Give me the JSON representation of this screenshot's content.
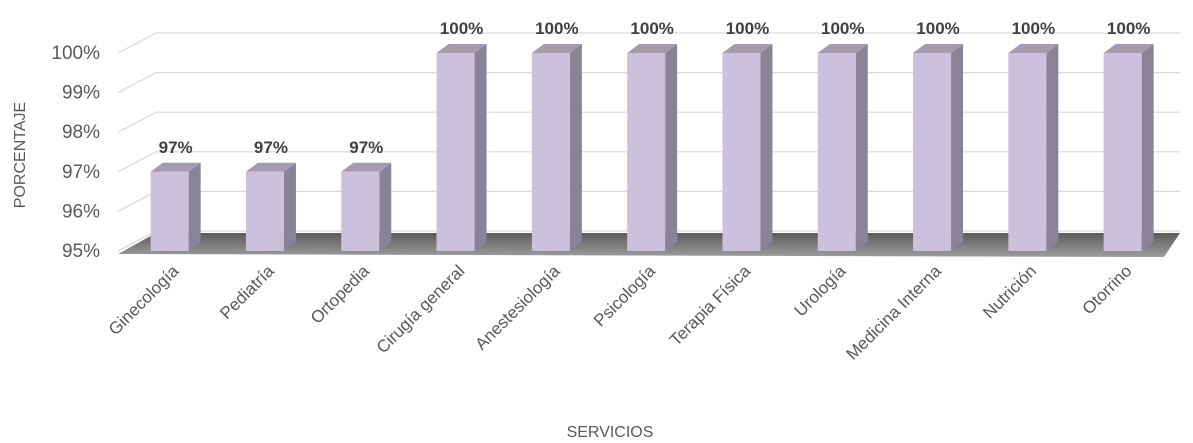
{
  "chart_data": {
    "type": "bar",
    "title": "",
    "xlabel": "SERVICIOS",
    "ylabel": "PORCENTAJE",
    "categories": [
      "Ginecología",
      "Pediatría",
      "Ortopedia",
      "Cirugía general",
      "Anestesiología",
      "Psicología",
      "Terapia Física",
      "Urología",
      "Medicina Interna",
      "Nutrición",
      "Otorrino"
    ],
    "values": [
      97,
      97,
      97,
      100,
      100,
      100,
      100,
      100,
      100,
      100,
      100
    ],
    "data_labels": [
      "97%",
      "97%",
      "97%",
      "100%",
      "100%",
      "100%",
      "100%",
      "100%",
      "100%",
      "100%",
      "100%"
    ],
    "ylim": [
      95,
      100
    ],
    "yticks": [
      95,
      96,
      97,
      98,
      99,
      100
    ],
    "ytick_labels": [
      "95%",
      "96%",
      "97%",
      "98%",
      "99%",
      "100%"
    ],
    "grid": true,
    "legend": "none",
    "colors": {
      "bar_front": "#ccc1dc",
      "bar_side": "#8a8296",
      "bar_top": "#a59aae",
      "floor_shadow": "#5a5a5a"
    }
  }
}
